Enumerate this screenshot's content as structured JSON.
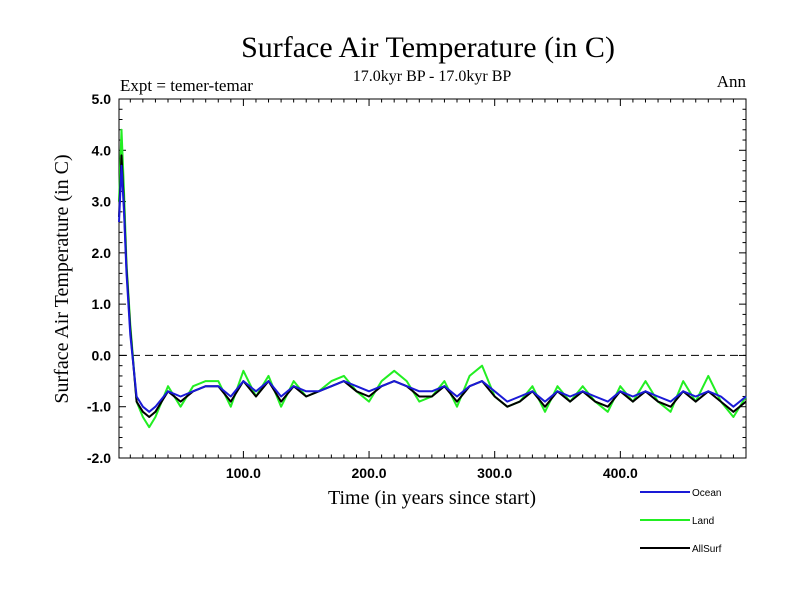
{
  "chart_data": {
    "type": "line",
    "title": "Surface Air Temperature (in C)",
    "subtitle": "17.0kyr BP - 17.0kyr BP",
    "left_annotation": "Expt = temer-temar",
    "right_annotation": "Ann",
    "xlabel": "Time (in years since start)",
    "ylabel": "Surface Air Temperature (in C)",
    "xlim": [
      1,
      500
    ],
    "ylim": [
      -2.0,
      5.0
    ],
    "x_ticks": [
      100,
      200,
      300,
      400
    ],
    "x_tick_labels": [
      "100.0",
      "200.0",
      "300.0",
      "400.0"
    ],
    "y_ticks": [
      -2,
      -1,
      0,
      1,
      2,
      3,
      4,
      5
    ],
    "y_tick_labels": [
      "-2.0",
      "-1.0",
      "0.0",
      "1.0",
      "2.0",
      "3.0",
      "4.0",
      "5.0"
    ],
    "reference_line": {
      "y": 0.0,
      "style": "dashed"
    },
    "legend_position": "bottom-right, below plot",
    "series": [
      {
        "name": "Ocean",
        "color": "#1a1ad6",
        "x": [
          1,
          3,
          5,
          7,
          10,
          15,
          20,
          25,
          30,
          40,
          50,
          60,
          70,
          80,
          90,
          100,
          110,
          120,
          130,
          140,
          150,
          160,
          170,
          180,
          190,
          200,
          210,
          220,
          230,
          240,
          250,
          260,
          270,
          280,
          290,
          300,
          310,
          320,
          330,
          340,
          350,
          360,
          370,
          380,
          390,
          400,
          410,
          420,
          430,
          440,
          450,
          460,
          470,
          480,
          490,
          500
        ],
        "values": [
          2.6,
          3.7,
          2.8,
          1.6,
          0.4,
          -0.8,
          -1.0,
          -1.1,
          -1.0,
          -0.7,
          -0.8,
          -0.7,
          -0.6,
          -0.6,
          -0.8,
          -0.5,
          -0.7,
          -0.5,
          -0.8,
          -0.6,
          -0.7,
          -0.7,
          -0.6,
          -0.5,
          -0.6,
          -0.7,
          -0.6,
          -0.5,
          -0.6,
          -0.7,
          -0.7,
          -0.6,
          -0.8,
          -0.6,
          -0.5,
          -0.7,
          -0.9,
          -0.8,
          -0.7,
          -0.9,
          -0.7,
          -0.8,
          -0.7,
          -0.8,
          -0.9,
          -0.7,
          -0.8,
          -0.7,
          -0.8,
          -0.9,
          -0.7,
          -0.8,
          -0.7,
          -0.8,
          -1.0,
          -0.8
        ]
      },
      {
        "name": "Land",
        "color": "#22ee22",
        "x": [
          1,
          3,
          5,
          7,
          10,
          15,
          20,
          25,
          30,
          40,
          50,
          60,
          70,
          80,
          90,
          100,
          110,
          120,
          130,
          140,
          150,
          160,
          170,
          180,
          190,
          200,
          210,
          220,
          230,
          240,
          250,
          260,
          270,
          280,
          290,
          300,
          310,
          320,
          330,
          340,
          350,
          360,
          370,
          380,
          390,
          400,
          410,
          420,
          430,
          440,
          450,
          460,
          470,
          480,
          490,
          500
        ],
        "values": [
          3.0,
          4.4,
          3.2,
          1.8,
          0.6,
          -0.9,
          -1.2,
          -1.4,
          -1.2,
          -0.6,
          -1.0,
          -0.6,
          -0.5,
          -0.5,
          -1.0,
          -0.3,
          -0.8,
          -0.4,
          -1.0,
          -0.5,
          -0.8,
          -0.7,
          -0.5,
          -0.4,
          -0.7,
          -0.9,
          -0.5,
          -0.3,
          -0.5,
          -0.9,
          -0.8,
          -0.5,
          -1.0,
          -0.4,
          -0.2,
          -0.8,
          -1.0,
          -0.9,
          -0.6,
          -1.1,
          -0.6,
          -0.9,
          -0.6,
          -0.9,
          -1.1,
          -0.6,
          -0.9,
          -0.5,
          -0.9,
          -1.1,
          -0.5,
          -0.9,
          -0.4,
          -0.9,
          -1.2,
          -0.8
        ]
      },
      {
        "name": "AllSurf",
        "color": "#000000",
        "x": [
          1,
          3,
          5,
          7,
          10,
          15,
          20,
          25,
          30,
          40,
          50,
          60,
          70,
          80,
          90,
          100,
          110,
          120,
          130,
          140,
          150,
          160,
          170,
          180,
          190,
          200,
          210,
          220,
          230,
          240,
          250,
          260,
          270,
          280,
          290,
          300,
          310,
          320,
          330,
          340,
          350,
          360,
          370,
          380,
          390,
          400,
          410,
          420,
          430,
          440,
          450,
          460,
          470,
          480,
          490,
          500
        ],
        "values": [
          2.7,
          3.9,
          2.9,
          1.7,
          0.5,
          -0.9,
          -1.1,
          -1.2,
          -1.1,
          -0.7,
          -0.9,
          -0.7,
          -0.6,
          -0.6,
          -0.9,
          -0.5,
          -0.8,
          -0.5,
          -0.9,
          -0.6,
          -0.8,
          -0.7,
          -0.6,
          -0.5,
          -0.7,
          -0.8,
          -0.6,
          -0.5,
          -0.6,
          -0.8,
          -0.8,
          -0.6,
          -0.9,
          -0.6,
          -0.5,
          -0.8,
          -1.0,
          -0.9,
          -0.7,
          -1.0,
          -0.7,
          -0.9,
          -0.7,
          -0.9,
          -1.0,
          -0.7,
          -0.9,
          -0.7,
          -0.9,
          -1.0,
          -0.7,
          -0.9,
          -0.7,
          -0.9,
          -1.1,
          -0.9
        ]
      }
    ]
  }
}
